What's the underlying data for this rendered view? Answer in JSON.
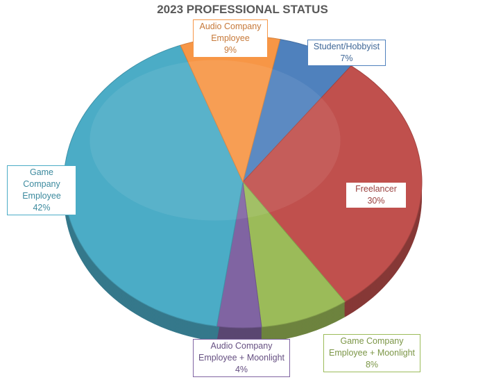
{
  "chart_data": {
    "type": "pie",
    "title": "2023 PROFESSIONAL STATUS",
    "categories": [
      "Student/Hobbyist",
      "Freelancer",
      "Game Company Employee + Moonlight",
      "Audio Company Employee + Moonlight",
      "Game Company Employee",
      "Audio Company Employee"
    ],
    "values": [
      7,
      30,
      8,
      4,
      42,
      9
    ],
    "value_labels": [
      "7%",
      "30%",
      "8%",
      "4%",
      "42%",
      "9%"
    ],
    "colors": [
      "#4f81bd",
      "#c0504d",
      "#9bbb59",
      "#8064a2",
      "#4bacc6",
      "#f79646"
    ]
  }
}
